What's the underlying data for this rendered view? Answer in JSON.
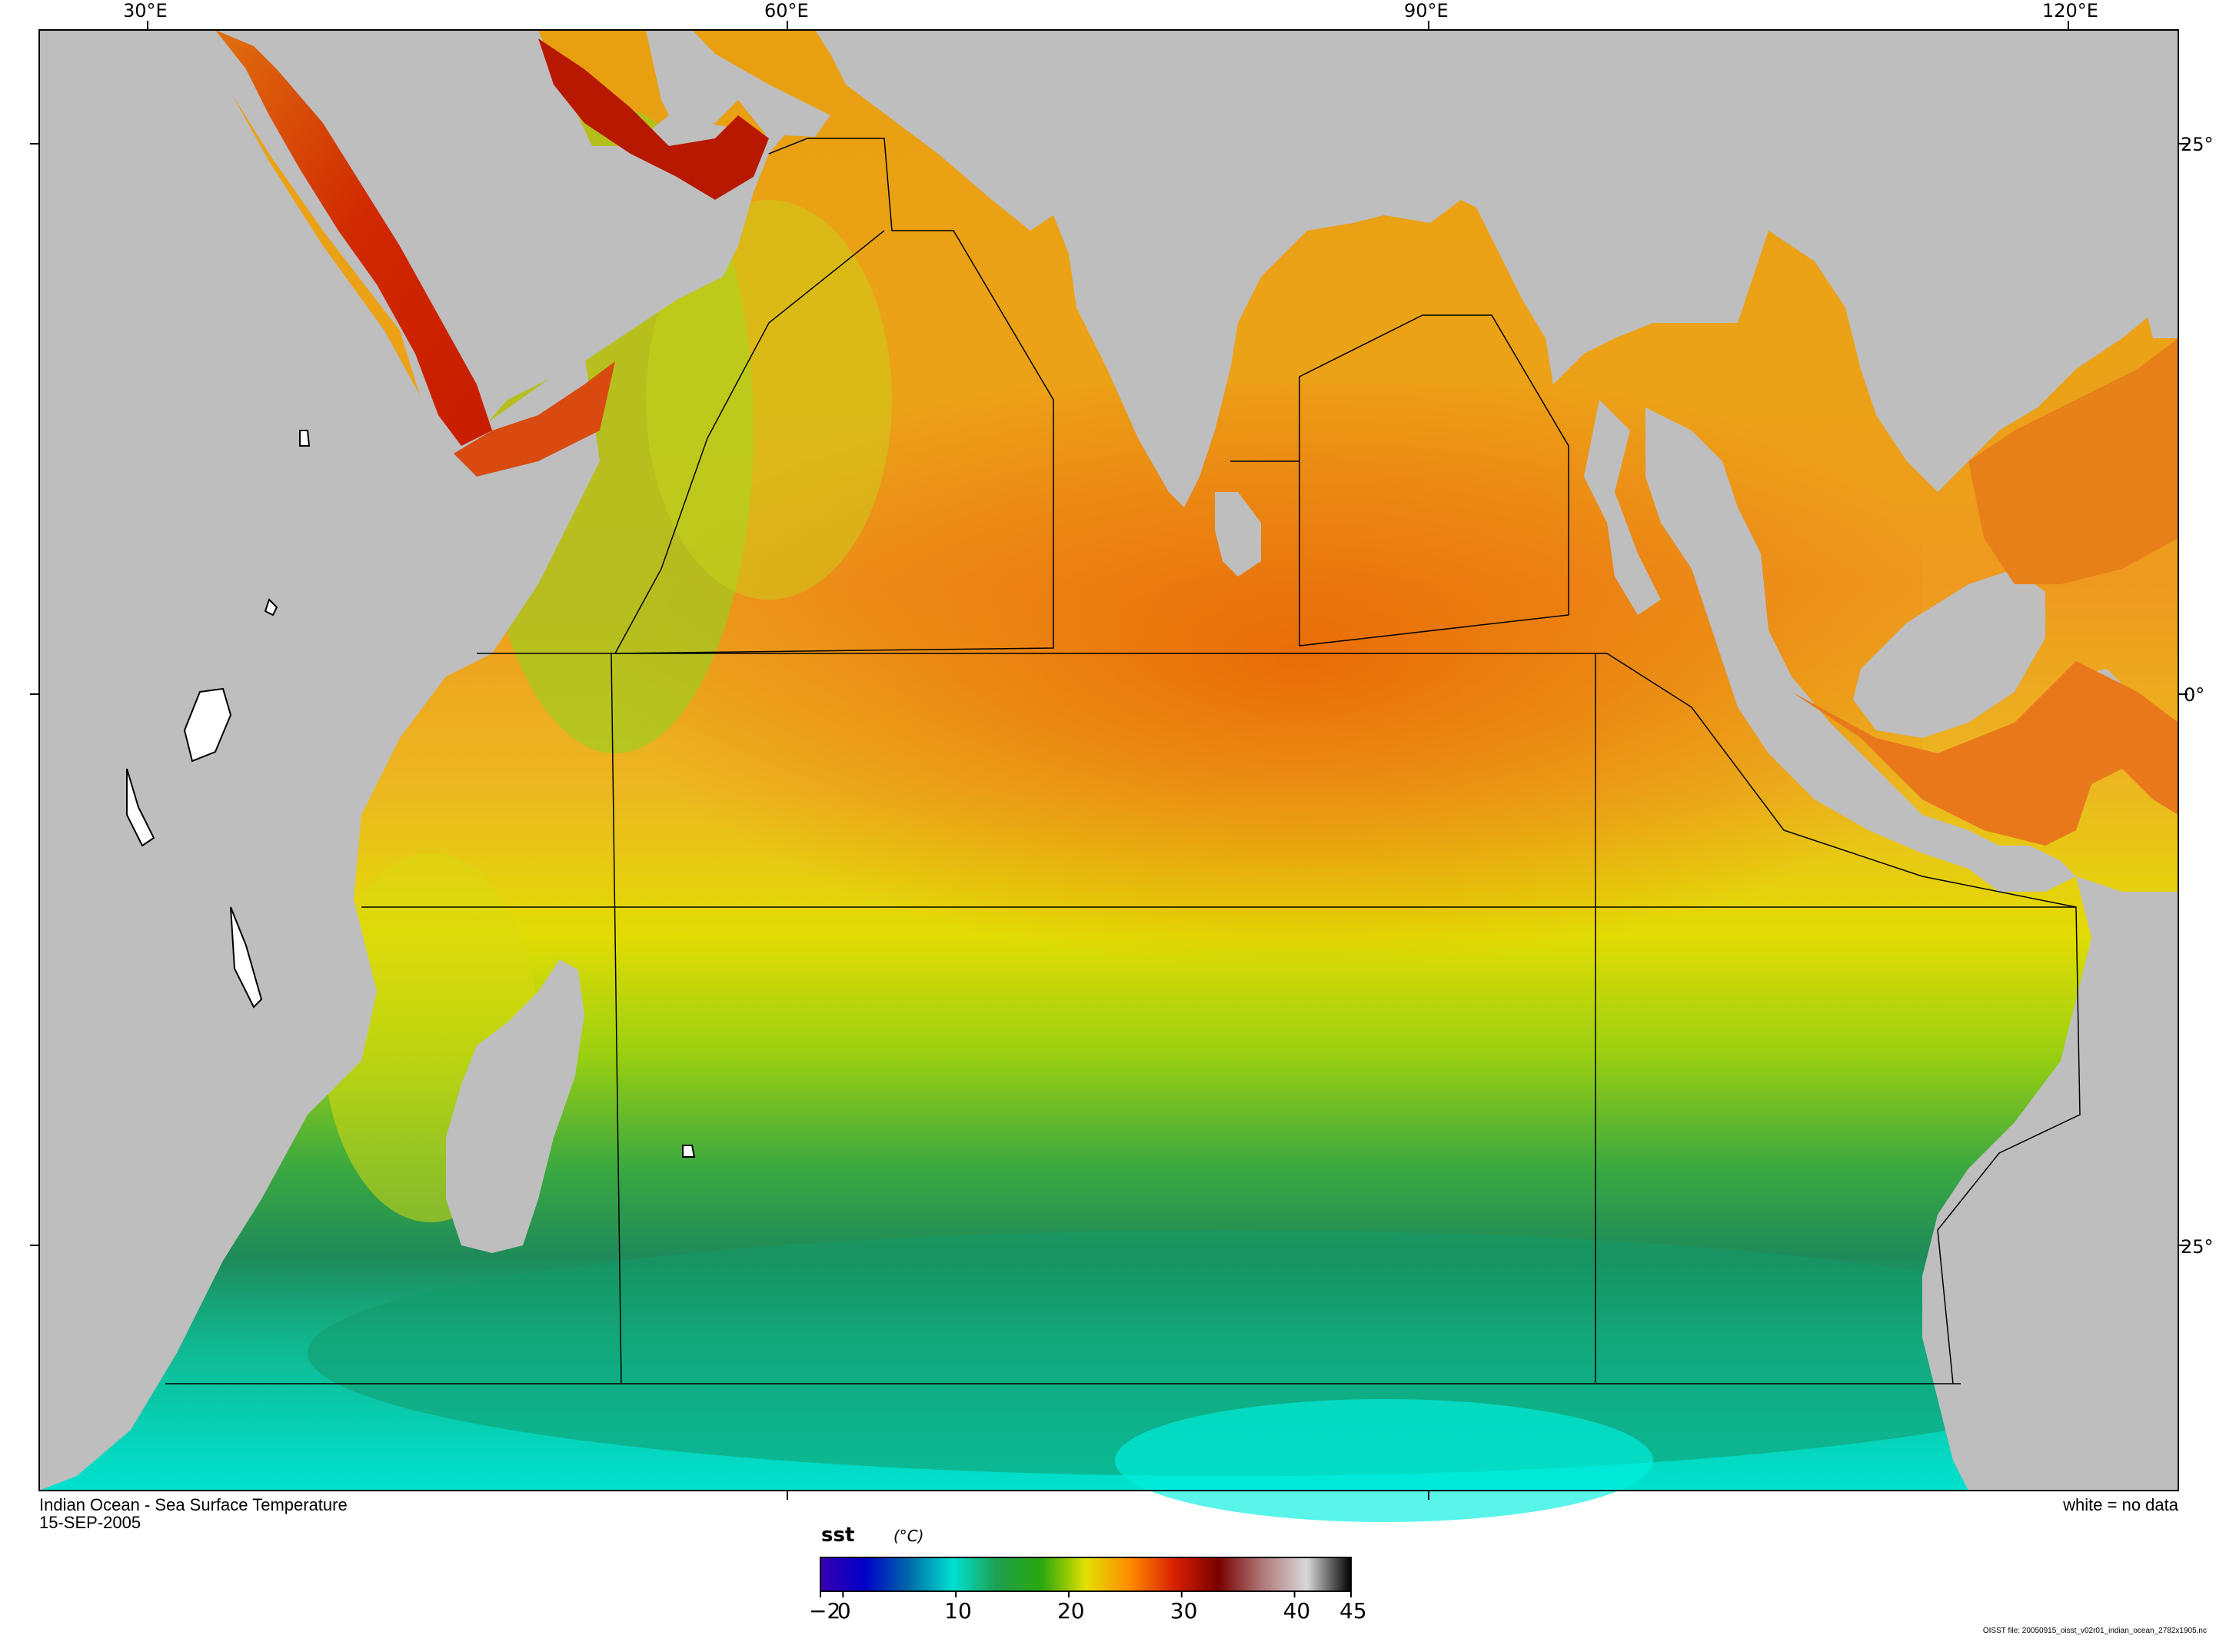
{
  "title": "Indian Ocean - Sea Surface Temperature",
  "date": "15-SEP-2005",
  "no_data_note": "white = no data",
  "file_note": "OISST file: 20050915_oisst_v02r01_indian_ocean_2782x1905.nc",
  "axes": {
    "lon_ticks": [
      "30°E",
      "60°E",
      "90°E",
      "120°E"
    ],
    "lat_ticks": [
      "25°",
      "0°",
      "25°"
    ]
  },
  "colorbar": {
    "variable": "sst",
    "units": "(°C)",
    "tick_labels": [
      "−2",
      "0",
      "10",
      "20",
      "30",
      "40",
      "45"
    ],
    "range": [
      -2,
      45
    ],
    "colors": [
      "#3a00b0",
      "#0000c8",
      "#006aa8",
      "#00e0d0",
      "#1ea050",
      "#2aa80c",
      "#e2e000",
      "#ff8c00",
      "#d82000",
      "#7a0000",
      "#b07878",
      "#d8d8d8",
      "#000000"
    ]
  },
  "map_colors": {
    "land": "#bebebe",
    "warm": "#e86a10",
    "hot": "#c81c00",
    "mid": "#e8d800",
    "cool": "#3aa83a",
    "cold": "#00d8c8"
  }
}
